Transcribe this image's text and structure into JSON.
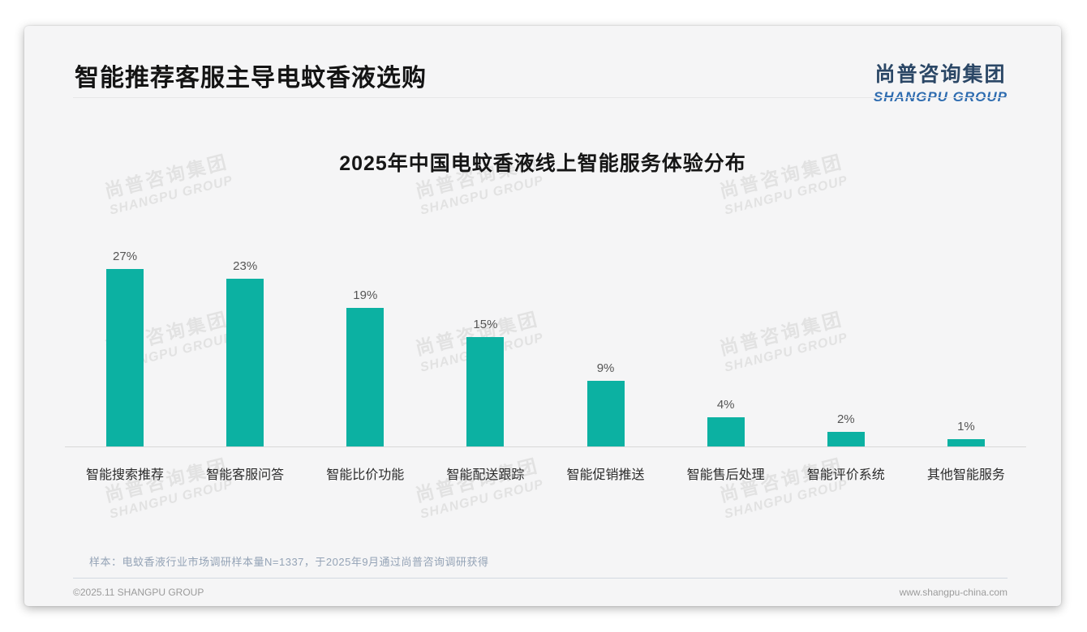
{
  "header": {
    "title": "智能推荐客服主导电蚊香液选购",
    "logo": {
      "cn": "尚普咨询集团",
      "en": "SHANGPU GROUP"
    }
  },
  "watermark": {
    "cn": "尚普咨询集团",
    "en": "SHANGPU GROUP"
  },
  "chart_data": {
    "type": "bar",
    "title": "2025年中国电蚊香液线上智能服务体验分布",
    "categories": [
      "智能搜索推荐",
      "智能客服问答",
      "智能比价功能",
      "智能配送跟踪",
      "智能促销推送",
      "智能售后处理",
      "智能评价系统",
      "其他智能服务"
    ],
    "values": [
      27,
      23,
      19,
      15,
      9,
      4,
      2,
      1
    ],
    "value_labels": [
      "27%",
      "23%",
      "19%",
      "15%",
      "9%",
      "4%",
      "2%",
      "1%"
    ],
    "unit": "%",
    "bar_color": "#0cb1a2",
    "ylim": [
      0,
      27
    ],
    "grid": false,
    "legend": false,
    "xlabel": "",
    "ylabel": ""
  },
  "note": "样本：电蚊香液行业市场调研样本量N=1337，于2025年9月通过尚普咨询调研获得",
  "footer": {
    "left": "©2025.11 SHANGPU GROUP",
    "right": "www.shangpu-china.com"
  },
  "colors": {
    "bar": "#0cb1a2",
    "logo_cn": "#2b4766",
    "logo_en": "#2e6cb0",
    "note": "#94a3b6",
    "card_bg": "#f5f5f6"
  }
}
